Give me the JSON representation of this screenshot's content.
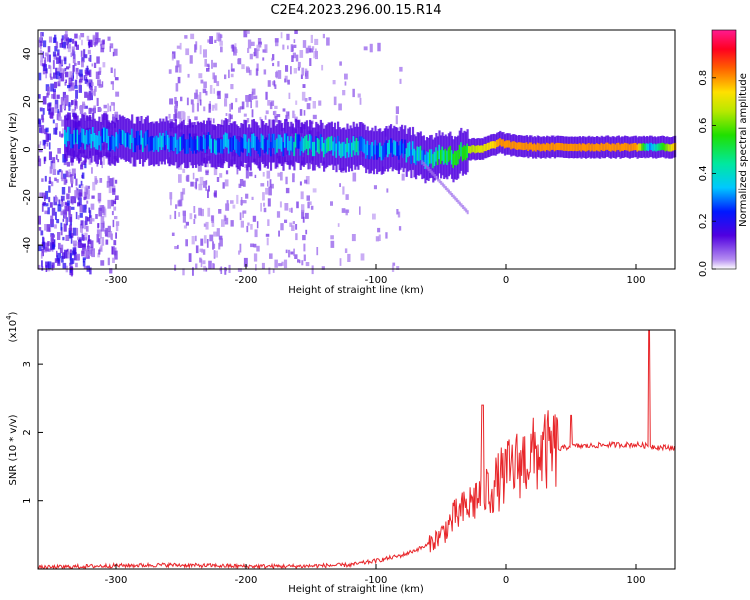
{
  "title": "C2E4.2023.296.00.15.R14",
  "chart_data": [
    {
      "type": "heatmap",
      "xlabel": "Height of straight line (km)",
      "ylabel": "Frequency (Hz)",
      "xlim": [
        -360,
        130
      ],
      "ylim": [
        -50,
        50
      ],
      "xticks": [
        -300,
        -200,
        -100,
        0,
        100
      ],
      "xtick_labels": [
        "-300",
        "-200",
        "-100",
        "0",
        "100"
      ],
      "yticks": [
        -40,
        -20,
        0,
        20,
        40
      ],
      "ytick_labels": [
        "-40",
        "-20",
        "0",
        "20",
        "40"
      ],
      "colorbar": {
        "label": "Normalized spectral amplitude",
        "range": [
          0,
          1
        ],
        "ticks": [
          0.0,
          0.2,
          0.4,
          0.6,
          0.8
        ],
        "tick_labels": [
          "0.0",
          "0.2",
          "0.4",
          "0.6",
          "0.8"
        ]
      },
      "ridge": {
        "x": [
          -340,
          -300,
          -250,
          -200,
          -150,
          -120,
          -100,
          -85,
          -70,
          -60,
          -50,
          -40,
          -30,
          -20,
          -10,
          -5,
          0,
          20,
          50,
          80,
          100,
          110,
          130
        ],
        "frequency": [
          5,
          4,
          3,
          2,
          2,
          1,
          0,
          1,
          -2,
          -4,
          -2,
          -3,
          0,
          0,
          2,
          3,
          2,
          1,
          1,
          1,
          1,
          1,
          1
        ],
        "amplitude": [
          0.3,
          0.3,
          0.3,
          0.3,
          0.35,
          0.4,
          0.3,
          0.3,
          0.35,
          0.4,
          0.5,
          0.6,
          0.65,
          0.7,
          0.75,
          0.8,
          0.8,
          0.8,
          0.8,
          0.8,
          0.8,
          0.3,
          0.8
        ]
      },
      "grid": false
    },
    {
      "type": "line",
      "xlabel": "Height of straight line (km)",
      "ylabel": "SNR (10 * v/v)",
      "y_multiplier": "(x10",
      "y_multiplier_exp": "4",
      "y_multiplier_close": ")",
      "xlim": [
        -360,
        130
      ],
      "ylim": [
        0,
        3.5
      ],
      "xticks": [
        -300,
        -200,
        -100,
        0,
        100
      ],
      "xtick_labels": [
        "-300",
        "-200",
        "-100",
        "0",
        "100"
      ],
      "yticks": [
        1,
        2,
        3
      ],
      "ytick_labels": [
        "1",
        "2",
        "3"
      ],
      "series": [
        {
          "color": "#e8262a",
          "x": [
            -360,
            -300,
            -260,
            -200,
            -160,
            -120,
            -100,
            -80,
            -60,
            -50,
            -40,
            -30,
            -20,
            -10,
            0,
            10,
            20,
            30,
            40,
            50,
            60,
            80,
            100,
            110,
            120,
            130
          ],
          "y": [
            0.02,
            0.05,
            0.06,
            0.04,
            0.04,
            0.06,
            0.12,
            0.2,
            0.35,
            0.5,
            0.75,
            0.9,
            1.1,
            1.2,
            1.4,
            1.55,
            1.65,
            1.72,
            1.75,
            1.8,
            1.8,
            1.82,
            1.82,
            1.8,
            1.78,
            1.78
          ]
        }
      ],
      "spikes": [
        {
          "x": -18,
          "y": 2.4
        },
        {
          "x": 50,
          "y": 2.25
        },
        {
          "x": 110,
          "y": 3.5
        }
      ],
      "grid": false
    }
  ]
}
